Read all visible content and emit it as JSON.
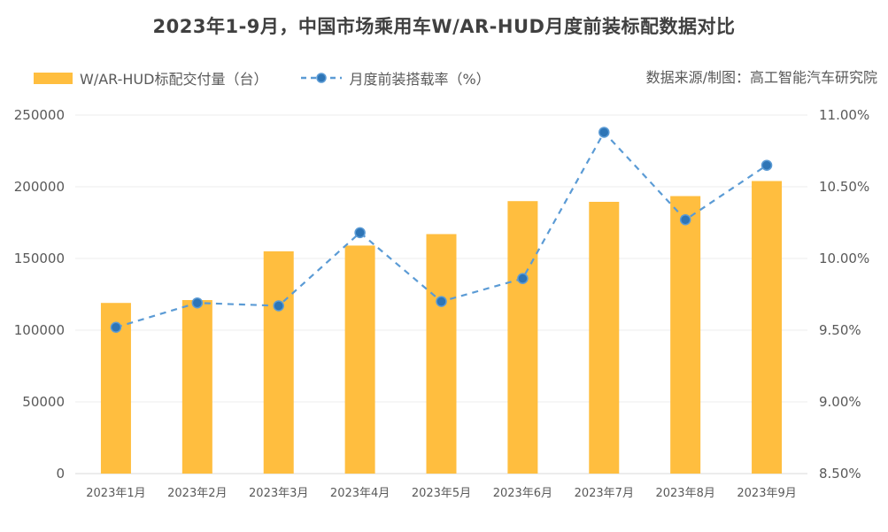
{
  "chart_data": {
    "type": "bar",
    "title": "2023年1-9月，中国市场乘用车W/AR-HUD月度前装标配数据对比",
    "source": "数据来源/制图：高工智能汽车研究院",
    "categories": [
      "2023年1月",
      "2023年2月",
      "2023年3月",
      "2023年4月",
      "2023年5月",
      "2023年6月",
      "2023年7月",
      "2023年8月",
      "2023年9月"
    ],
    "series": [
      {
        "name": "W/AR-HUD标配交付量（台）",
        "type": "bar",
        "axis": "left",
        "color": "#FFBE3F",
        "values": [
          119000,
          121000,
          155000,
          159000,
          167000,
          190000,
          189500,
          193500,
          204000
        ]
      },
      {
        "name": "月度前装搭载率（%）",
        "type": "line",
        "axis": "right",
        "color": "#5B9BD5",
        "marker_color": "#2E75B6",
        "values": [
          9.52,
          9.69,
          9.67,
          10.18,
          9.7,
          9.86,
          10.88,
          10.27,
          10.65
        ]
      }
    ],
    "y_left": {
      "ylim": [
        0,
        250000
      ],
      "ticks": [
        "0",
        "50000",
        "100000",
        "150000",
        "200000",
        "250000"
      ]
    },
    "y_right": {
      "ylim": [
        8.5,
        11.0
      ],
      "ticks": [
        "8.50%",
        "9.00%",
        "9.50%",
        "10.00%",
        "10.50%",
        "11.00%"
      ]
    },
    "grid": true,
    "legend_position": "top-left"
  }
}
